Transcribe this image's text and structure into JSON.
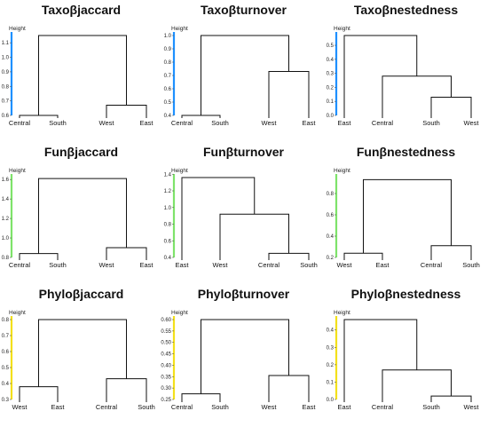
{
  "chart_data": [
    {
      "type": "dendrogram",
      "title": "Taxoβjaccard",
      "ylabel": "Height",
      "axis_color": "#1e90ff",
      "ylim": [
        0.6,
        1.15
      ],
      "ticks": [
        0.6,
        0.7,
        0.8,
        0.9,
        1.0,
        1.1
      ],
      "leaves": [
        "Central",
        "South",
        "West",
        "East"
      ],
      "merges": [
        {
          "a": "Central",
          "b": "South",
          "height": 0.6
        },
        {
          "a": "West",
          "b": "East",
          "height": 0.67
        },
        {
          "a": 0,
          "b": 1,
          "height": 1.15
        }
      ]
    },
    {
      "type": "dendrogram",
      "title": "Taxoβturnover",
      "ylabel": "Height",
      "axis_color": "#1e90ff",
      "ylim": [
        0.4,
        1.0
      ],
      "ticks": [
        0.4,
        0.5,
        0.6,
        0.7,
        0.8,
        0.9,
        1.0
      ],
      "leaves": [
        "Central",
        "South",
        "West",
        "East"
      ],
      "merges": [
        {
          "a": "Central",
          "b": "South",
          "height": 0.4
        },
        {
          "a": "West",
          "b": "East",
          "height": 0.73
        },
        {
          "a": 0,
          "b": 1,
          "height": 1.0
        }
      ]
    },
    {
      "type": "dendrogram",
      "title": "Taxoβnestedness",
      "ylabel": "Height",
      "axis_color": "#1e90ff",
      "ylim": [
        0.0,
        0.57
      ],
      "ticks": [
        0.0,
        0.1,
        0.2,
        0.3,
        0.4,
        0.5
      ],
      "leaves": [
        "East",
        "Central",
        "South",
        "West"
      ],
      "merges": [
        {
          "a": "South",
          "b": "West",
          "height": 0.13
        },
        {
          "a": "Central",
          "b": 0,
          "height": 0.28
        },
        {
          "a": "East",
          "b": 1,
          "height": 0.57
        }
      ]
    },
    {
      "type": "dendrogram",
      "title": "Funβjaccard",
      "ylabel": "Height",
      "axis_color": "#7ee36a",
      "ylim": [
        0.8,
        1.62
      ],
      "ticks": [
        0.8,
        1.0,
        1.2,
        1.4,
        1.6
      ],
      "leaves": [
        "Central",
        "South",
        "West",
        "East"
      ],
      "merges": [
        {
          "a": "Central",
          "b": "South",
          "height": 0.84
        },
        {
          "a": "West",
          "b": "East",
          "height": 0.9
        },
        {
          "a": 0,
          "b": 1,
          "height": 1.61
        }
      ]
    },
    {
      "type": "dendrogram",
      "title": "Funβturnover",
      "ylabel": "Height",
      "axis_color": "#7ee36a",
      "ylim": [
        0.4,
        1.36
      ],
      "ticks": [
        0.4,
        0.6,
        0.8,
        1.0,
        1.2,
        1.4
      ],
      "leaves": [
        "East",
        "West",
        "Central",
        "South"
      ],
      "merges": [
        {
          "a": "Central",
          "b": "South",
          "height": 0.45
        },
        {
          "a": "West",
          "b": 0,
          "height": 0.92
        },
        {
          "a": "East",
          "b": 1,
          "height": 1.36
        }
      ]
    },
    {
      "type": "dendrogram",
      "title": "Funβnestedness",
      "ylabel": "Height",
      "axis_color": "#7ee36a",
      "ylim": [
        0.2,
        0.95
      ],
      "ticks": [
        0.2,
        0.4,
        0.6,
        0.8
      ],
      "leaves": [
        "West",
        "East",
        "Central",
        "South"
      ],
      "merges": [
        {
          "a": "West",
          "b": "East",
          "height": 0.24
        },
        {
          "a": "Central",
          "b": "South",
          "height": 0.31
        },
        {
          "a": 0,
          "b": 1,
          "height": 0.93
        }
      ]
    },
    {
      "type": "dendrogram",
      "title": "Phyloβjaccard",
      "ylabel": "Height",
      "axis_color": "#f3e01b",
      "ylim": [
        0.3,
        0.8
      ],
      "ticks": [
        0.3,
        0.4,
        0.5,
        0.6,
        0.7,
        0.8
      ],
      "leaves": [
        "West",
        "East",
        "Central",
        "South"
      ],
      "merges": [
        {
          "a": "West",
          "b": "East",
          "height": 0.38
        },
        {
          "a": "Central",
          "b": "South",
          "height": 0.43
        },
        {
          "a": 0,
          "b": 1,
          "height": 0.8
        }
      ]
    },
    {
      "type": "dendrogram",
      "title": "Phyloβturnover",
      "ylabel": "Height",
      "axis_color": "#f3e01b",
      "ylim": [
        0.25,
        0.6
      ],
      "ticks": [
        0.25,
        0.3,
        0.35,
        0.4,
        0.45,
        0.5,
        0.55,
        0.6
      ],
      "leaves": [
        "Central",
        "South",
        "West",
        "East"
      ],
      "merges": [
        {
          "a": "Central",
          "b": "South",
          "height": 0.275
        },
        {
          "a": "West",
          "b": "East",
          "height": 0.355
        },
        {
          "a": 0,
          "b": 1,
          "height": 0.6
        }
      ]
    },
    {
      "type": "dendrogram",
      "title": "Phyloβnestedness",
      "ylabel": "Height",
      "axis_color": "#f3e01b",
      "ylim": [
        0.0,
        0.46
      ],
      "ticks": [
        0.0,
        0.1,
        0.2,
        0.3,
        0.4
      ],
      "leaves": [
        "East",
        "Central",
        "South",
        "West"
      ],
      "merges": [
        {
          "a": "South",
          "b": "West",
          "height": 0.02
        },
        {
          "a": "Central",
          "b": 0,
          "height": 0.17
        },
        {
          "a": "East",
          "b": 1,
          "height": 0.46
        }
      ]
    }
  ]
}
